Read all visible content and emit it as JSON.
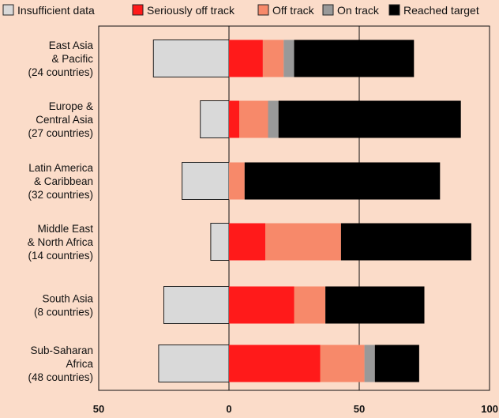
{
  "chart_data": {
    "type": "bar",
    "stacked": true,
    "orientation": "horizontal",
    "categories": [
      [
        "East Asia",
        "& Pacific",
        "(24 countries)"
      ],
      [
        "Europe &",
        "Central Asia",
        "(27 countries)"
      ],
      [
        "Latin America",
        "& Caribbean",
        "(32 countries)"
      ],
      [
        "Middle East",
        "& North Africa",
        "(14 countries)"
      ],
      [
        "South Asia",
        "(8 countries)"
      ],
      [
        "Sub-Saharan",
        "Africa",
        "(48 countries)"
      ]
    ],
    "series": [
      {
        "name": "Insufficient data",
        "color": "#d9d9d9",
        "direction": "negative",
        "values": [
          29,
          11,
          18,
          7,
          25,
          27
        ]
      },
      {
        "name": "Seriously off track",
        "color": "#ff1a1a",
        "values": [
          13,
          4,
          0,
          14,
          25,
          35
        ]
      },
      {
        "name": "Off track",
        "color": "#f7896a",
        "values": [
          8,
          11,
          6,
          29,
          12,
          17
        ]
      },
      {
        "name": "On track",
        "color": "#999999",
        "values": [
          4,
          4,
          0,
          0,
          0,
          4
        ]
      },
      {
        "name": "Reached target",
        "color": "#000000",
        "values": [
          46,
          70,
          75,
          50,
          38,
          17
        ]
      }
    ],
    "xlim": [
      -50,
      100
    ],
    "xticks": [
      {
        "value": -50,
        "label": "50"
      },
      {
        "value": 0,
        "label": "0"
      },
      {
        "value": 50,
        "label": "50"
      },
      {
        "value": 100,
        "label": "100"
      }
    ],
    "grid": {
      "vertical_at": [
        0,
        50,
        100
      ]
    },
    "legend": {
      "position": "top"
    },
    "title": "",
    "xlabel": "",
    "ylabel": ""
  }
}
